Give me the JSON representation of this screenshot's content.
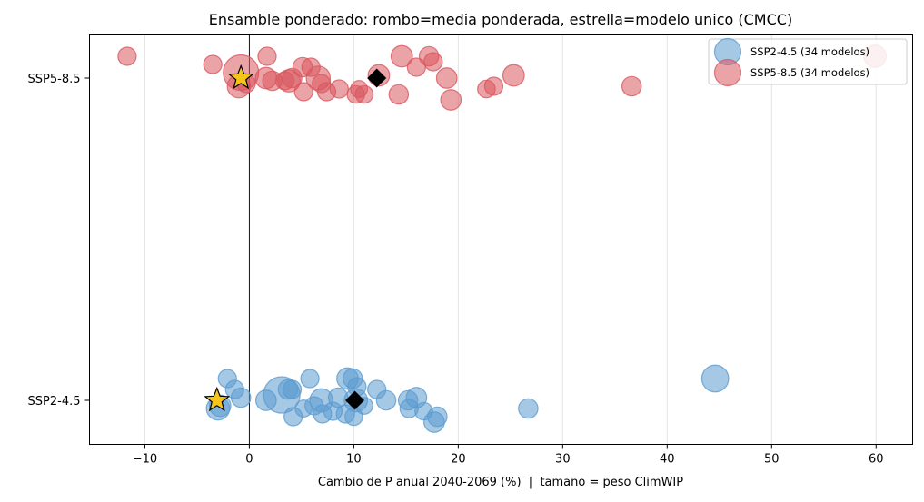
{
  "chart_data": {
    "type": "scatter",
    "title": "Ensamble ponderado: rombo=media ponderada, estrella=modelo unico (CMCC)",
    "xlabel": "Cambio de P anual 2040-2069 (%)  |  tamano = peso ClimWIP",
    "ylabel": "",
    "xlim": [
      -15.3,
      63.5
    ],
    "x_ticks": [
      -10,
      0,
      10,
      20,
      30,
      40,
      50,
      60
    ],
    "x_tick_labels": [
      "−10",
      "0",
      "10",
      "20",
      "30",
      "40",
      "50",
      "60"
    ],
    "categories": [
      "SSP2-4.5",
      "SSP5-8.5"
    ],
    "grid": "vertical",
    "reference_line_x": 0,
    "legend_position": "top-right",
    "series": [
      {
        "name": "SSP2-4.5 (34 modelos)",
        "category": "SSP2-4.5",
        "color": "#5b9bd0",
        "points": [
          {
            "x": -2.1,
            "jitter": 0.08,
            "weight": 0.8
          },
          {
            "x": -1.4,
            "jitter": 0.04,
            "weight": 0.8
          },
          {
            "x": -0.8,
            "jitter": 0.01,
            "weight": 1.0
          },
          {
            "x": -3.0,
            "jitter": -0.03,
            "weight": 1.8
          },
          {
            "x": -2.8,
            "jitter": -0.02,
            "weight": 1.4
          },
          {
            "x": 1.6,
            "jitter": 0.0,
            "weight": 1.2
          },
          {
            "x": 3.1,
            "jitter": 0.02,
            "weight": 6.5
          },
          {
            "x": 3.7,
            "jitter": 0.04,
            "weight": 1.0
          },
          {
            "x": 4.1,
            "jitter": 0.04,
            "weight": 0.8
          },
          {
            "x": 4.2,
            "jitter": -0.06,
            "weight": 0.8
          },
          {
            "x": 5.8,
            "jitter": 0.08,
            "weight": 0.8
          },
          {
            "x": 6.2,
            "jitter": -0.02,
            "weight": 0.8
          },
          {
            "x": 6.9,
            "jitter": 0.0,
            "weight": 1.8
          },
          {
            "x": 7.0,
            "jitter": -0.05,
            "weight": 0.8
          },
          {
            "x": 8.0,
            "jitter": -0.04,
            "weight": 0.8
          },
          {
            "x": 8.5,
            "jitter": 0.01,
            "weight": 1.0
          },
          {
            "x": 9.2,
            "jitter": -0.05,
            "weight": 0.8
          },
          {
            "x": 9.4,
            "jitter": 0.08,
            "weight": 1.4
          },
          {
            "x": 9.9,
            "jitter": 0.08,
            "weight": 1.0
          },
          {
            "x": 10.0,
            "jitter": -0.06,
            "weight": 0.7
          },
          {
            "x": 10.3,
            "jitter": 0.05,
            "weight": 0.8
          },
          {
            "x": 10.2,
            "jitter": 0.0,
            "weight": 1.8
          },
          {
            "x": 12.2,
            "jitter": 0.04,
            "weight": 0.8
          },
          {
            "x": 13.1,
            "jitter": 0.0,
            "weight": 1.0
          },
          {
            "x": 15.2,
            "jitter": 0.0,
            "weight": 1.0
          },
          {
            "x": 15.3,
            "jitter": -0.03,
            "weight": 0.8
          },
          {
            "x": 16.0,
            "jitter": 0.01,
            "weight": 1.2
          },
          {
            "x": 16.7,
            "jitter": -0.04,
            "weight": 0.7
          },
          {
            "x": 17.7,
            "jitter": -0.08,
            "weight": 1.2
          },
          {
            "x": 18.0,
            "jitter": -0.06,
            "weight": 1.0
          },
          {
            "x": 26.7,
            "jitter": -0.03,
            "weight": 1.0
          },
          {
            "x": 44.6,
            "jitter": 0.08,
            "weight": 2.8
          },
          {
            "x": 5.2,
            "jitter": -0.03,
            "weight": 0.6
          },
          {
            "x": 11.0,
            "jitter": -0.02,
            "weight": 0.6
          }
        ],
        "weighted_mean": 10.1,
        "single_model_cmcc": -3.1
      },
      {
        "name": "SSP5-8.5 (34 modelos)",
        "category": "SSP5-8.5",
        "color": "#d9575f",
        "points": [
          {
            "x": -11.7,
            "jitter": 0.08,
            "weight": 0.8
          },
          {
            "x": -3.5,
            "jitter": 0.05,
            "weight": 0.8
          },
          {
            "x": -0.8,
            "jitter": 0.02,
            "weight": 6.0
          },
          {
            "x": -1.0,
            "jitter": -0.03,
            "weight": 1.8
          },
          {
            "x": 1.7,
            "jitter": 0.08,
            "weight": 0.8
          },
          {
            "x": 1.6,
            "jitter": 0.0,
            "weight": 1.4
          },
          {
            "x": 2.2,
            "jitter": -0.01,
            "weight": 1.0
          },
          {
            "x": 3.8,
            "jitter": -0.01,
            "weight": 1.6
          },
          {
            "x": 4.1,
            "jitter": 0.0,
            "weight": 1.0
          },
          {
            "x": 5.1,
            "jitter": 0.04,
            "weight": 1.0
          },
          {
            "x": 5.2,
            "jitter": -0.05,
            "weight": 0.8
          },
          {
            "x": 5.9,
            "jitter": 0.04,
            "weight": 0.8
          },
          {
            "x": 6.6,
            "jitter": 0.0,
            "weight": 2.0
          },
          {
            "x": 6.9,
            "jitter": -0.02,
            "weight": 0.8
          },
          {
            "x": 7.4,
            "jitter": -0.05,
            "weight": 0.8
          },
          {
            "x": 8.6,
            "jitter": -0.04,
            "weight": 0.8
          },
          {
            "x": 10.2,
            "jitter": -0.06,
            "weight": 0.7
          },
          {
            "x": 10.5,
            "jitter": -0.04,
            "weight": 0.6
          },
          {
            "x": 11.0,
            "jitter": -0.06,
            "weight": 0.7
          },
          {
            "x": 12.4,
            "jitter": 0.01,
            "weight": 1.4
          },
          {
            "x": 14.3,
            "jitter": -0.06,
            "weight": 1.0
          },
          {
            "x": 14.6,
            "jitter": 0.08,
            "weight": 1.4
          },
          {
            "x": 16.0,
            "jitter": 0.04,
            "weight": 0.8
          },
          {
            "x": 17.2,
            "jitter": 0.08,
            "weight": 1.0
          },
          {
            "x": 17.6,
            "jitter": 0.06,
            "weight": 0.8
          },
          {
            "x": 18.9,
            "jitter": 0.0,
            "weight": 1.2
          },
          {
            "x": 19.3,
            "jitter": -0.08,
            "weight": 1.2
          },
          {
            "x": 22.7,
            "jitter": -0.04,
            "weight": 0.7
          },
          {
            "x": 23.4,
            "jitter": -0.03,
            "weight": 0.8
          },
          {
            "x": 25.3,
            "jitter": 0.01,
            "weight": 1.4
          },
          {
            "x": 36.6,
            "jitter": -0.03,
            "weight": 1.0
          },
          {
            "x": 59.9,
            "jitter": 0.08,
            "weight": 1.6
          },
          {
            "x": -0.3,
            "jitter": -0.02,
            "weight": 0.8
          },
          {
            "x": 3.4,
            "jitter": -0.01,
            "weight": 0.8
          }
        ],
        "weighted_mean": 12.2,
        "single_model_cmcc": -0.8
      }
    ]
  }
}
